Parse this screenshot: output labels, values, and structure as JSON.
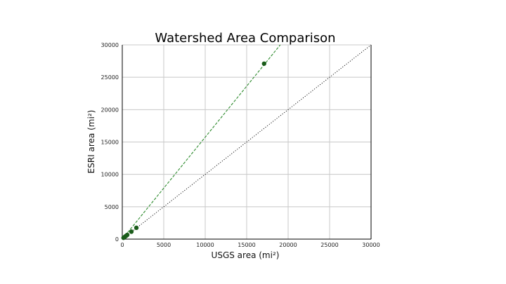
{
  "chart_data": {
    "type": "scatter",
    "title": "Watershed Area Comparison",
    "xlabel": "USGS area (mi²)",
    "ylabel": "ESRI area (mi²)",
    "xlim": [
      0,
      30000
    ],
    "ylim": [
      0,
      30000
    ],
    "xticks": [
      0,
      5000,
      10000,
      15000,
      20000,
      25000,
      30000
    ],
    "yticks": [
      0,
      5000,
      10000,
      15000,
      20000,
      25000,
      30000
    ],
    "grid": true,
    "colors": {
      "points": "#1a5c1a",
      "fit_line": "#2e8b2e",
      "identity_line": "#000000",
      "grid": "#c8c8c8",
      "frame": "#000000"
    },
    "series": [
      {
        "kind": "points",
        "points": [
          {
            "x": 150,
            "y": 200
          },
          {
            "x": 300,
            "y": 350
          },
          {
            "x": 450,
            "y": 500
          },
          {
            "x": 600,
            "y": 650
          },
          {
            "x": 1100,
            "y": 1150
          },
          {
            "x": 1700,
            "y": 1750
          },
          {
            "x": 17100,
            "y": 27100
          }
        ]
      },
      {
        "kind": "fit-line",
        "points": [
          {
            "x": 0,
            "y": 0
          },
          {
            "x": 19050,
            "y": 30000
          }
        ]
      },
      {
        "kind": "identity-line",
        "points": [
          {
            "x": 0,
            "y": 0
          },
          {
            "x": 30000,
            "y": 30000
          }
        ]
      }
    ]
  }
}
